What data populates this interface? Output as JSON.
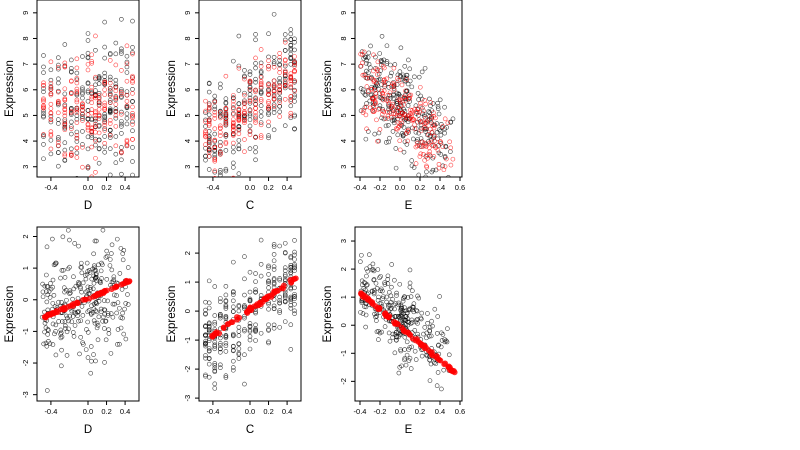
{
  "figure": {
    "layout": "2x3 grid of scatter plots",
    "rows": 2,
    "cols": 3
  },
  "colors": {
    "points_black": "#000000",
    "points_red": "#ff0000",
    "frame": "#000000",
    "background": "#ffffff"
  },
  "chart_data": [
    {
      "type": "scatter",
      "xlabel": "D",
      "ylabel": "Expression",
      "xlim": [
        -0.55,
        0.55
      ],
      "ylim": [
        2.6,
        9.5
      ],
      "xticks": [
        -0.4,
        0.0,
        0.2,
        0.4
      ],
      "xtick_labels": [
        "-0.4",
        "0.0",
        "0.2",
        "0.4"
      ],
      "yticks": [
        3,
        4,
        5,
        6,
        7,
        8,
        9
      ],
      "ytick_labels": [
        "3",
        "4",
        "5",
        "6",
        "7",
        "8",
        "9"
      ],
      "x_columns": [
        -0.48,
        -0.4,
        -0.32,
        -0.25,
        -0.18,
        -0.12,
        -0.06,
        0.0,
        0.04,
        0.08,
        0.12,
        0.18,
        0.24,
        0.3,
        0.36,
        0.42,
        0.48
      ],
      "series": [
        {
          "color": "black",
          "relation": "none",
          "y_center": 5.4,
          "y_spread": 1.4,
          "count": 260
        },
        {
          "color": "red",
          "relation": "none",
          "y_center": 5.3,
          "y_spread": 1.0,
          "count": 200
        }
      ],
      "grid": false
    },
    {
      "type": "scatter",
      "xlabel": "C",
      "ylabel": "Expression",
      "xlim": [
        -0.55,
        0.55
      ],
      "ylim": [
        2.6,
        9.5
      ],
      "xticks": [
        -0.4,
        0.0,
        0.2,
        0.4
      ],
      "xtick_labels": [
        "-0.4",
        "0.0",
        "0.2",
        "0.4"
      ],
      "yticks": [
        3,
        4,
        5,
        6,
        7,
        8,
        9
      ],
      "ytick_labels": [
        "3",
        "4",
        "5",
        "6",
        "7",
        "8",
        "9"
      ],
      "x_columns": [
        -0.48,
        -0.44,
        -0.38,
        -0.32,
        -0.26,
        -0.18,
        -0.12,
        -0.06,
        0.0,
        0.06,
        0.12,
        0.2,
        0.26,
        0.32,
        0.38,
        0.44,
        0.48
      ],
      "series": [
        {
          "color": "black",
          "relation": "increasing",
          "y_at_xmin": 3.8,
          "y_at_xmax": 7.0,
          "y_spread": 1.1,
          "count": 260
        },
        {
          "color": "red",
          "relation": "increasing",
          "y_at_xmin": 3.9,
          "y_at_xmax": 6.8,
          "y_spread": 0.6,
          "count": 200
        }
      ],
      "grid": false
    },
    {
      "type": "scatter",
      "xlabel": "E",
      "ylabel": "Expression",
      "xlim": [
        -0.45,
        0.62
      ],
      "ylim": [
        2.6,
        9.5
      ],
      "xticks": [
        -0.4,
        -0.2,
        0.0,
        0.2,
        0.4,
        0.6
      ],
      "xtick_labels": [
        "-0.4",
        "-0.2",
        "0.0",
        "0.2",
        "0.4",
        "0.6"
      ],
      "yticks": [
        3,
        4,
        5,
        6,
        7,
        8,
        9
      ],
      "ytick_labels": [
        "3",
        "4",
        "5",
        "6",
        "7",
        "8",
        "9"
      ],
      "x_columns": [],
      "series": [
        {
          "color": "black",
          "relation": "decreasing",
          "y_at_xmin": 6.8,
          "y_at_xmax": 3.6,
          "y_spread": 1.0,
          "count": 300
        },
        {
          "color": "red",
          "relation": "decreasing",
          "y_at_xmin": 6.6,
          "y_at_xmax": 3.4,
          "y_spread": 0.7,
          "count": 220
        }
      ],
      "grid": false
    },
    {
      "type": "scatter",
      "xlabel": "D",
      "ylabel": "Expression",
      "xlim": [
        -0.55,
        0.55
      ],
      "ylim": [
        -3.2,
        2.3
      ],
      "xticks": [
        -0.4,
        0.0,
        0.2,
        0.4
      ],
      "xtick_labels": [
        "-0.4",
        "0.0",
        "0.2",
        "0.4"
      ],
      "yticks": [
        -3,
        -2,
        -1,
        0,
        1,
        2
      ],
      "ytick_labels": [
        "-3",
        "-2",
        "-1",
        "0",
        "1",
        "2"
      ],
      "x_columns": [],
      "series": [
        {
          "color": "black",
          "relation": "increasing",
          "y_at_xmin": -0.6,
          "y_at_xmax": 0.7,
          "y_spread": 0.9,
          "count": 300
        },
        {
          "color": "red",
          "relation": "fitted-line",
          "y_at_xmin": -0.65,
          "y_at_xmax": 0.72,
          "y_spread": 0.02,
          "count": 70
        }
      ],
      "grid": false
    },
    {
      "type": "scatter",
      "xlabel": "C",
      "ylabel": "Expression",
      "xlim": [
        -0.55,
        0.55
      ],
      "ylim": [
        -3.1,
        2.9
      ],
      "xticks": [
        -0.4,
        0.0,
        0.2,
        0.4
      ],
      "xtick_labels": [
        "-0.4",
        "0.0",
        "0.2",
        "0.4"
      ],
      "yticks": [
        -3,
        -2,
        -1,
        0,
        1,
        2
      ],
      "ytick_labels": [
        "-3",
        "-2",
        "-1",
        "0",
        "1",
        "2"
      ],
      "x_columns": [
        -0.48,
        -0.44,
        -0.38,
        -0.32,
        -0.26,
        -0.18,
        -0.12,
        -0.06,
        0.0,
        0.06,
        0.12,
        0.2,
        0.26,
        0.32,
        0.38,
        0.44,
        0.48
      ],
      "series": [
        {
          "color": "black",
          "relation": "increasing",
          "y_at_xmin": -1.2,
          "y_at_xmax": 1.3,
          "y_spread": 0.8,
          "count": 300
        },
        {
          "color": "red",
          "relation": "fitted-line",
          "y_at_xmin": -1.15,
          "y_at_xmax": 1.25,
          "y_spread": 0.03,
          "count": 60
        }
      ],
      "grid": false
    },
    {
      "type": "scatter",
      "xlabel": "E",
      "ylabel": "Expression",
      "xlim": [
        -0.45,
        0.62
      ],
      "ylim": [
        -2.7,
        3.5
      ],
      "xticks": [
        -0.4,
        -0.2,
        0.0,
        0.2,
        0.4,
        0.6
      ],
      "xtick_labels": [
        "-0.4",
        "-0.2",
        "0.0",
        "0.2",
        "0.4",
        "0.6"
      ],
      "yticks": [
        -2,
        -1,
        0,
        1,
        2,
        3
      ],
      "ytick_labels": [
        "-2",
        "-1",
        "0",
        "1",
        "2",
        "3"
      ],
      "x_columns": [],
      "series": [
        {
          "color": "black",
          "relation": "decreasing",
          "y_at_xmin": 1.4,
          "y_at_xmax": -1.4,
          "y_spread": 0.7,
          "count": 320
        },
        {
          "color": "red",
          "relation": "fitted-line",
          "y_at_xmin": 1.3,
          "y_at_xmax": -1.9,
          "y_spread": 0.03,
          "count": 80
        }
      ],
      "grid": false
    }
  ]
}
